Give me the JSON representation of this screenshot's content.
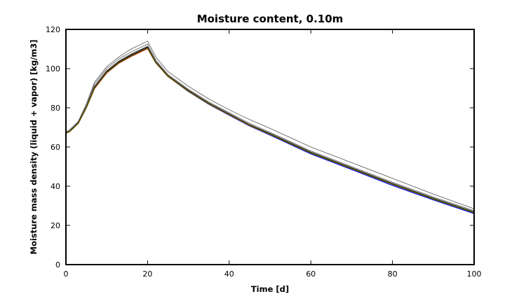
{
  "chart_data": {
    "type": "line",
    "title": "Moisture content, 0.10m",
    "xlabel": "Time [d]",
    "ylabel": "Moisture mass density (liquid + vapor) [kg/m3]",
    "xlim": [
      0,
      100
    ],
    "ylim": [
      0,
      120
    ],
    "xticks": [
      0,
      20,
      40,
      60,
      80,
      100
    ],
    "yticks": [
      0,
      20,
      40,
      60,
      80,
      100,
      120
    ],
    "grid": false,
    "x": [
      0,
      1,
      3,
      5,
      7,
      10,
      13,
      16,
      20,
      22,
      25,
      30,
      35,
      40,
      45,
      50,
      60,
      70,
      80,
      90,
      100
    ],
    "series": [
      {
        "name": "gray-1",
        "color": "#555555",
        "width": 0.8,
        "values": [
          67.5,
          69,
          73,
          82,
          93,
          101,
          106,
          110,
          114,
          106,
          98.5,
          91,
          84.5,
          79,
          74,
          69.5,
          60,
          52,
          44,
          36,
          28.5
        ]
      },
      {
        "name": "gray-2",
        "color": "#555555",
        "width": 0.8,
        "values": [
          67,
          68.5,
          72.5,
          81,
          92,
          100,
          105,
          108.5,
          112.5,
          104.5,
          97,
          89.5,
          83,
          77.5,
          72,
          67.5,
          58,
          50,
          42,
          34.5,
          27.5
        ]
      },
      {
        "name": "gray-3",
        "color": "#555555",
        "width": 0.8,
        "values": [
          67,
          68.3,
          72.2,
          80.5,
          91,
          99,
          104,
          107.5,
          111.5,
          103.8,
          96.5,
          89,
          82.5,
          77,
          71.5,
          67,
          57.5,
          49.5,
          41.5,
          34,
          27
        ]
      },
      {
        "name": "blue",
        "color": "#0000ff",
        "width": 1.2,
        "values": [
          67,
          68,
          72,
          80,
          90,
          98,
          103,
          106.5,
          110.5,
          103,
          96,
          88.3,
          81.8,
          76.2,
          70.7,
          66.1,
          56.5,
          48.5,
          40.4,
          33,
          26
        ]
      },
      {
        "name": "red",
        "color": "#e00000",
        "width": 1.2,
        "values": [
          67,
          68,
          72,
          80,
          89.8,
          97.8,
          102.8,
          106.2,
          110.2,
          103,
          96,
          88.5,
          82,
          76.5,
          71,
          66.5,
          57,
          49,
          41,
          33.5,
          26.5
        ]
      },
      {
        "name": "green",
        "color": "#008000",
        "width": 1.2,
        "values": [
          67,
          68,
          72,
          80,
          90,
          98,
          103,
          106.5,
          110.5,
          103,
          96,
          88.5,
          82,
          76.5,
          71,
          66.4,
          56.9,
          48.9,
          40.9,
          33.4,
          26.4
        ]
      },
      {
        "name": "black",
        "color": "#000000",
        "width": 1.2,
        "values": [
          67.2,
          68.2,
          72.2,
          80.3,
          90.4,
          98.5,
          103.5,
          107,
          111,
          103.3,
          96.3,
          88.8,
          82.2,
          76.7,
          71.2,
          66.7,
          57.2,
          49.2,
          41.2,
          33.7,
          26.8
        ]
      },
      {
        "name": "olive",
        "color": "#6b5a00",
        "width": 1.4,
        "values": [
          67,
          68,
          72,
          80,
          90,
          98,
          103,
          106.5,
          110.5,
          103,
          96,
          88.5,
          82,
          76.5,
          71,
          66.5,
          57,
          49,
          41,
          33.5,
          26.6
        ]
      }
    ]
  }
}
